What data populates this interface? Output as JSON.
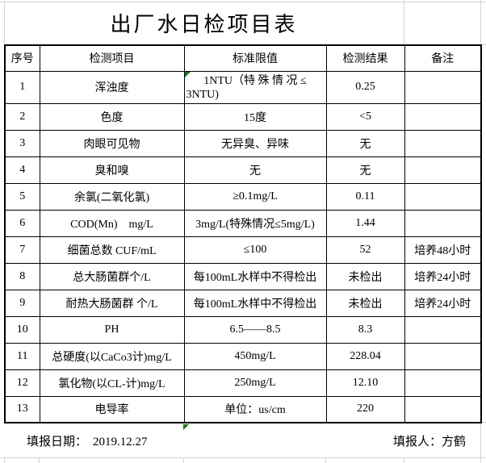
{
  "title": "出厂水日检项目表",
  "table": {
    "headers": [
      "序号",
      "检测项目",
      "标准限值",
      "检测结果",
      "备注"
    ],
    "rows": [
      {
        "no": "1",
        "item": "浑浊度",
        "std": "1NTU（特 殊 情 况 ≤",
        "std2": "3NTU)",
        "result": "0.25",
        "note": "",
        "flag": true
      },
      {
        "no": "2",
        "item": "色度",
        "std": "15度",
        "result": "<5",
        "note": ""
      },
      {
        "no": "3",
        "item": "肉眼可见物",
        "std": "无异臭、异味",
        "result": "无",
        "note": ""
      },
      {
        "no": "4",
        "item": "臭和嗅",
        "std": "无",
        "result": "无",
        "note": ""
      },
      {
        "no": "5",
        "item": "余氯(二氧化氯)",
        "std": "≥0.1mg/L",
        "result": "0.11",
        "note": ""
      },
      {
        "no": "6",
        "item": "COD(Mn)　mg/L",
        "std": "3mg/L(特殊情况≤5mg/L)",
        "result": "1.44",
        "note": ""
      },
      {
        "no": "7",
        "item": "细菌总数 CUF/mL",
        "std": "≤100",
        "result": "52",
        "note": "培养48小时"
      },
      {
        "no": "8",
        "item": "总大肠菌群个/L",
        "std": "每100mL水样中不得检出",
        "result": "未检出",
        "note": "培养24小时"
      },
      {
        "no": "9",
        "item": "耐热大肠菌群 个/L",
        "std": "每100mL水样中不得检出",
        "result": "未检出",
        "note": "培养24小时"
      },
      {
        "no": "10",
        "item": "PH",
        "std": "6.5——8.5",
        "result": "8.3",
        "note": ""
      },
      {
        "no": "11",
        "item": "总硬度(以CaCo3计)mg/L",
        "std": "450mg/L",
        "result": "228.04",
        "note": ""
      },
      {
        "no": "12",
        "item": "氯化物(以CL-计)mg/L",
        "std": "250mg/L",
        "result": "12.10",
        "note": ""
      },
      {
        "no": "13",
        "item": "电导率",
        "std": "单位：us/cm",
        "result": "220",
        "note": ""
      }
    ]
  },
  "footer": {
    "date_label": "填报日期：",
    "date_value": "2019.12.27",
    "reporter_label": "填报人：",
    "reporter_value": "方鹤"
  },
  "icons": {
    "cell_error_flag": "green-corner-triangle"
  },
  "colors": {
    "table_border": "#000000",
    "gridline": "#d4d4d4",
    "flag_green": "#107c10",
    "background": "#ffffff",
    "text": "#000000"
  }
}
